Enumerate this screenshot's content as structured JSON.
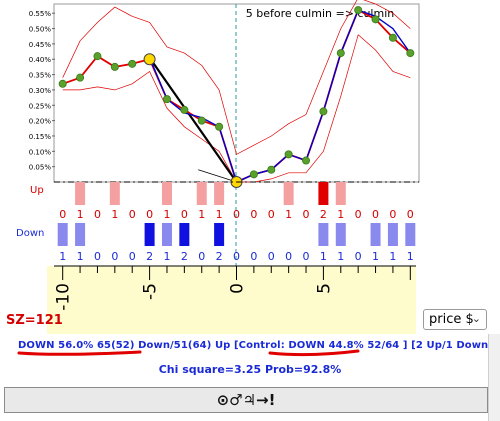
{
  "chart_title": "5 before culmin => culmin",
  "y_tick_labels": [
    "0.55%",
    "0.50%",
    "0.45%",
    "0.40%",
    "0.35%",
    "0.30%",
    "0.25%",
    "0.20%",
    "0.15%",
    "0.10%",
    "0.05%"
  ],
  "row_labels": {
    "up": "Up",
    "down": "Down"
  },
  "up_counts": [
    "0",
    "1",
    "0",
    "1",
    "0",
    "0",
    "1",
    "0",
    "1",
    "1",
    "0",
    "0",
    "0",
    "1",
    "0",
    "2",
    "1",
    "0",
    "0",
    "0",
    "0"
  ],
  "down_counts": [
    "1",
    "1",
    "0",
    "0",
    "0",
    "2",
    "1",
    "2",
    "0",
    "2",
    "0",
    "0",
    "0",
    "0",
    "0",
    "1",
    "1",
    "0",
    "1",
    "1",
    "1"
  ],
  "x_tick_labels": [
    "-10",
    "-5",
    "0",
    "5"
  ],
  "sz_label": "SZ=121",
  "price_select": {
    "value": "price $"
  },
  "stats_line": "DOWN 56.0% 65(52) Down/51(64) Up [Control: DOWN 44.8% 52/64 ] [2 Up/1 Down]",
  "chi_line": "Chi square=3.25  Prob=92.8%",
  "symbol_button": "⊙♂♃→!",
  "colors": {
    "main_line": "#e00000",
    "blue_line": "#0000cc",
    "point_green": "#5aa02c",
    "highlight_yellow": "#ffd800",
    "up_bar": "#f5a0a0",
    "up_bar_strong": "#e00000",
    "down_bar": "#8a8aee",
    "down_bar_strong": "#1010e0",
    "axis_bg": "#fefccd",
    "label_red": "#d40000",
    "label_blue": "#1a2bd6"
  },
  "chart_data": {
    "type": "line",
    "title": "5 before culmin => culmin",
    "x": [
      -10,
      -9,
      -8,
      -7,
      -6,
      -5,
      -4,
      -3,
      -2,
      -1,
      0,
      1,
      2,
      3,
      4,
      5,
      6,
      7,
      8,
      9,
      10
    ],
    "series": [
      {
        "name": "",
        "values": [
          0.32,
          0.34,
          0.41,
          0.375,
          0.385,
          0.4,
          0.27,
          0.235,
          0.2,
          0.18,
          0.0,
          0.025,
          0.04,
          0.09,
          0.07,
          0.23,
          0.42,
          0.56,
          0.53,
          0.47,
          0.42
        ]
      },
      {
        "name": "",
        "values": [
          null,
          null,
          null,
          null,
          null,
          0.405,
          0.27,
          0.225,
          0.21,
          0.18,
          0.0,
          0.025,
          0.04,
          0.09,
          0.07,
          0.23,
          0.42,
          0.56,
          0.54,
          0.5,
          0.42
        ]
      }
    ],
    "ylim": [
      0.0,
      0.58
    ],
    "xlim": [
      -10.5,
      10.5
    ],
    "ytick_labels": [
      "0.55%",
      "0.50%",
      "0.45%",
      "0.40%",
      "0.35%",
      "0.30%",
      "0.25%",
      "0.20%",
      "0.15%",
      "0.10%",
      "0.05%"
    ]
  }
}
